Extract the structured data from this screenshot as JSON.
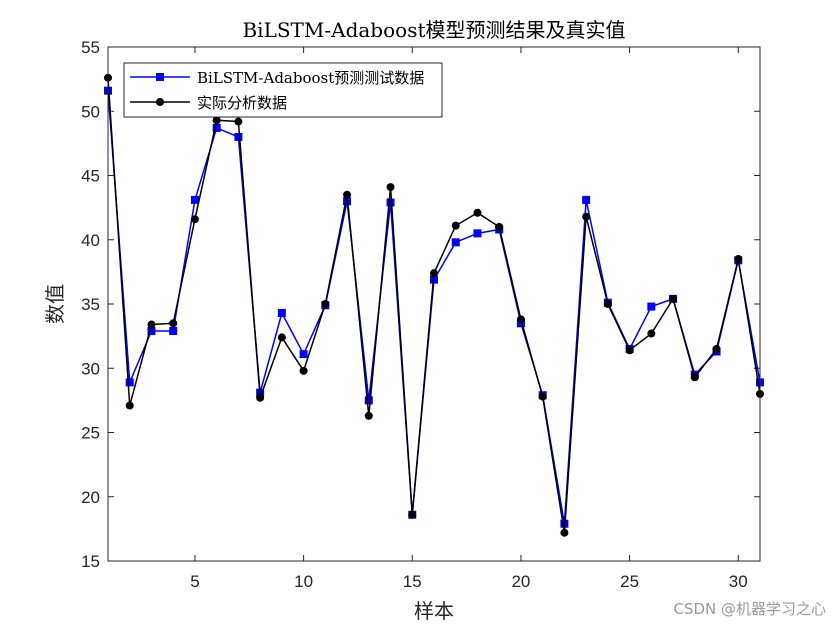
{
  "chart_data": {
    "type": "line",
    "title": "BiLSTM-Adaboost模型预测结果及真实值",
    "xlabel": "样本",
    "ylabel": "数值",
    "xlim": [
      1,
      31
    ],
    "ylim": [
      15,
      55
    ],
    "xticks": [
      5,
      10,
      15,
      20,
      25,
      30
    ],
    "yticks": [
      15,
      20,
      25,
      30,
      35,
      40,
      45,
      50,
      55
    ],
    "legend_position": "top-left",
    "x": [
      1,
      2,
      3,
      4,
      5,
      6,
      7,
      8,
      9,
      10,
      11,
      12,
      13,
      14,
      15,
      16,
      17,
      18,
      19,
      20,
      21,
      22,
      23,
      24,
      25,
      26,
      27,
      28,
      29,
      30,
      31
    ],
    "series": [
      {
        "name": "BiLSTM-Adaboost预测测试数据",
        "color": "#0000ff",
        "marker": "square",
        "values": [
          51.6,
          28.9,
          32.9,
          32.9,
          43.1,
          48.7,
          48.0,
          28.1,
          34.3,
          31.1,
          34.9,
          43.0,
          27.5,
          42.9,
          18.6,
          36.9,
          39.8,
          40.5,
          40.8,
          33.5,
          27.9,
          17.9,
          43.1,
          35.1,
          31.5,
          34.8,
          35.4,
          29.5,
          31.3,
          38.4,
          28.9
        ]
      },
      {
        "name": "实际分析数据",
        "color": "#000000",
        "marker": "circle",
        "values": [
          52.6,
          27.1,
          33.4,
          33.5,
          41.6,
          49.3,
          49.2,
          27.7,
          32.4,
          29.8,
          35.0,
          43.5,
          26.3,
          44.1,
          18.6,
          37.4,
          41.1,
          42.1,
          41.0,
          33.8,
          27.8,
          17.2,
          41.8,
          35.0,
          31.4,
          32.7,
          35.4,
          29.3,
          31.5,
          38.5,
          28.0
        ]
      }
    ]
  },
  "watermark": "CSDN @机器学习之心"
}
